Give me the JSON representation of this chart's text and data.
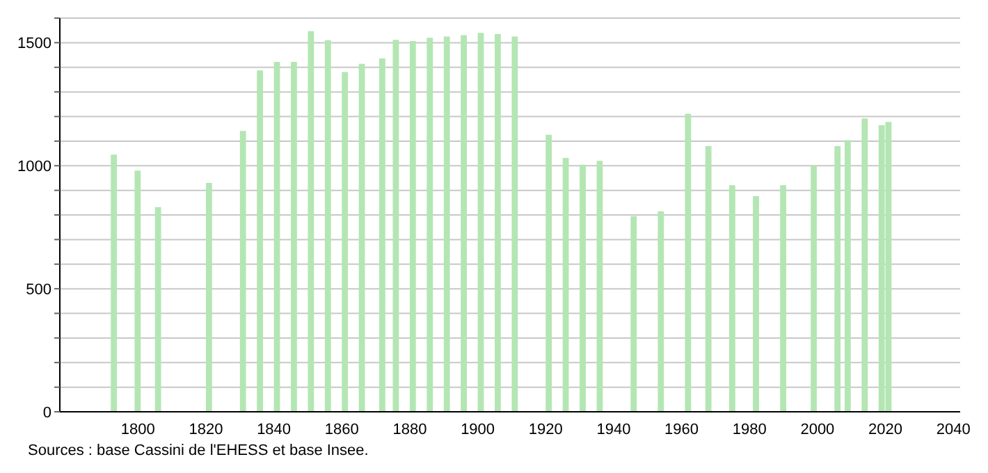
{
  "chart_data": {
    "type": "bar",
    "x": [
      1793,
      1800,
      1806,
      1821,
      1831,
      1836,
      1841,
      1846,
      1851,
      1856,
      1861,
      1866,
      1872,
      1876,
      1881,
      1886,
      1891,
      1896,
      1901,
      1906,
      1911,
      1921,
      1926,
      1931,
      1936,
      1946,
      1954,
      1962,
      1968,
      1975,
      1982,
      1990,
      1999,
      2006,
      2009,
      2014,
      2019,
      2021
    ],
    "values": [
      1045,
      980,
      832,
      930,
      1141,
      1387,
      1422,
      1422,
      1547,
      1510,
      1381,
      1414,
      1436,
      1512,
      1507,
      1520,
      1525,
      1531,
      1540,
      1535,
      1525,
      1126,
      1032,
      1004,
      1020,
      795,
      815,
      1211,
      1080,
      921,
      876,
      921,
      1002,
      1080,
      1104,
      1192,
      1165,
      1178
    ],
    "color": "#b3e6b3",
    "xlim": [
      1777,
      2042
    ],
    "xticks": [
      1800,
      1820,
      1840,
      1860,
      1880,
      1900,
      1920,
      1940,
      1960,
      1980,
      2000,
      2020,
      2040
    ],
    "ylim": [
      0,
      1600
    ],
    "yticks": [
      0,
      {
        "value": 100,
        "label": null
      },
      {
        "value": 200,
        "label": null
      },
      {
        "value": 300,
        "label": null
      },
      {
        "value": 400,
        "label": null
      },
      500,
      {
        "value": 600,
        "label": null
      },
      {
        "value": 700,
        "label": null
      },
      {
        "value": 800,
        "label": null
      },
      {
        "value": 900,
        "label": null
      },
      1000,
      {
        "value": 1100,
        "label": null
      },
      {
        "value": 1200,
        "label": null
      },
      {
        "value": 1300,
        "label": null
      },
      {
        "value": 1400,
        "label": null
      },
      1500,
      {
        "value": 1600,
        "label": null
      }
    ],
    "grid": "y",
    "annotations": [
      "Sources : base Cassini de l'EHESS et base Insee."
    ]
  }
}
